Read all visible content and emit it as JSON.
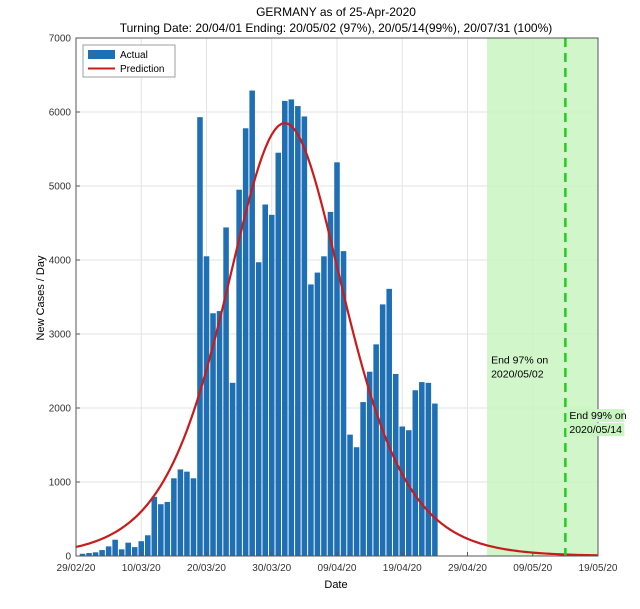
{
  "chart_data": {
    "type": "bar",
    "title": "GERMANY as of 25-Apr-2020",
    "subtitle": "Turning Date: 20/04/01  Ending: 20/05/02 (97%), 20/05/14(99%), 20/07/31 (100%)",
    "xlabel": "Date",
    "ylabel": "New Cases / Day",
    "ylim": [
      0,
      7000
    ],
    "yticks": [
      0,
      1000,
      2000,
      3000,
      4000,
      5000,
      6000,
      7000
    ],
    "x_range": [
      "2020-02-29",
      "2020-05-19"
    ],
    "xtick_labels": [
      "29/02/20",
      "10/03/20",
      "20/03/20",
      "30/03/20",
      "09/04/20",
      "19/04/20",
      "29/04/20",
      "09/05/20",
      "19/05/20"
    ],
    "grid": true,
    "legend_position": "top-left",
    "series": [
      {
        "name": "Actual",
        "kind": "bar",
        "color": "#1f6fb5",
        "start_date": "2020-03-01",
        "values": [
          30,
          40,
          50,
          80,
          130,
          220,
          90,
          180,
          120,
          200,
          280,
          800,
          700,
          730,
          1050,
          1170,
          1140,
          1050,
          5930,
          4050,
          3280,
          3310,
          4440,
          2340,
          4950,
          5780,
          6290,
          3970,
          4750,
          4610,
          5450,
          6150,
          6170,
          6080,
          5940,
          3670,
          3830,
          4050,
          4650,
          5320,
          4120,
          1640,
          1470,
          2080,
          2490,
          2860,
          3400,
          3610,
          2460,
          1750,
          1700,
          2240,
          2350,
          2340,
          2060
        ]
      },
      {
        "name": "Prediction",
        "kind": "line",
        "color": "#cc1a1a",
        "peak_date": "2020-04-01",
        "peak_value": 5850,
        "end_value": 100
      }
    ],
    "shaded_region": {
      "from": "2020-05-02",
      "to": "2020-05-19",
      "color": "#c8f5c0"
    },
    "vline": {
      "date": "2020-05-14",
      "color": "#22cc22",
      "style": "dashed"
    },
    "annotations": [
      {
        "date": "2020-05-02",
        "y": 2600,
        "lines": [
          "End 97% on",
          "2020/05/02"
        ]
      },
      {
        "date": "2020-05-14",
        "y": 1850,
        "lines": [
          "End 99% on",
          "2020/05/14"
        ]
      }
    ]
  }
}
